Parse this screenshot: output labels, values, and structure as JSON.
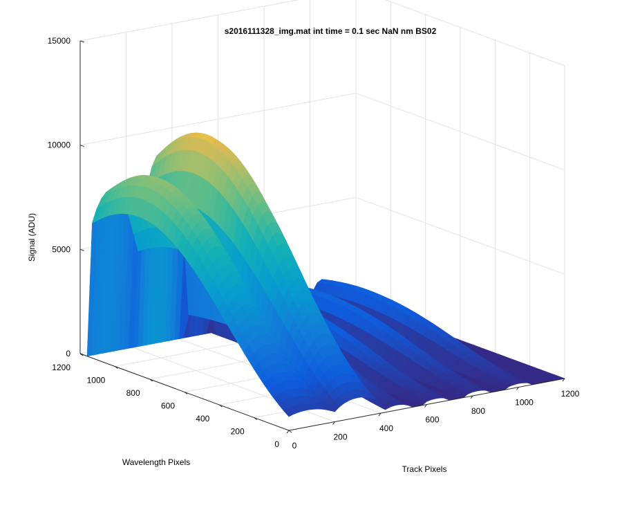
{
  "chart_data": {
    "type": "surface",
    "title": "s2016111328_img.mat int time = 0.1 sec  NaN nm BS02",
    "xlabel": "Track Pixels",
    "ylabel": "Wavelength Pixels",
    "zlabel": "Signal (ADU)",
    "xlim": [
      0,
      1200
    ],
    "ylim": [
      0,
      1200
    ],
    "zlim": [
      0,
      15000
    ],
    "x_ticks": [
      "0",
      "200",
      "400",
      "600",
      "800",
      "1000",
      "1200"
    ],
    "y_ticks": [
      "0",
      "200",
      "400",
      "600",
      "800",
      "1000",
      "1200"
    ],
    "z_ticks": [
      "0",
      "5000",
      "10000",
      "15000"
    ],
    "grid": true,
    "colormap": "parula",
    "colors": {
      "low": "#352a87",
      "mid": "#1fa0c6",
      "high": "#f9c52a"
    },
    "peaks": [
      {
        "track_center": 80,
        "track_width": 150,
        "peak_signal": 9300
      },
      {
        "track_center": 300,
        "track_width": 120,
        "peak_signal": 10900
      },
      {
        "track_center": 470,
        "track_width": 60,
        "peak_signal": 2800
      },
      {
        "track_center": 640,
        "track_width": 60,
        "peak_signal": 2300
      },
      {
        "track_center": 820,
        "track_width": 60,
        "peak_signal": 2200
      },
      {
        "track_center": 1000,
        "track_width": 60,
        "peak_signal": 2000
      }
    ],
    "wavelength_profile_extent": [
      0,
      1150
    ]
  }
}
